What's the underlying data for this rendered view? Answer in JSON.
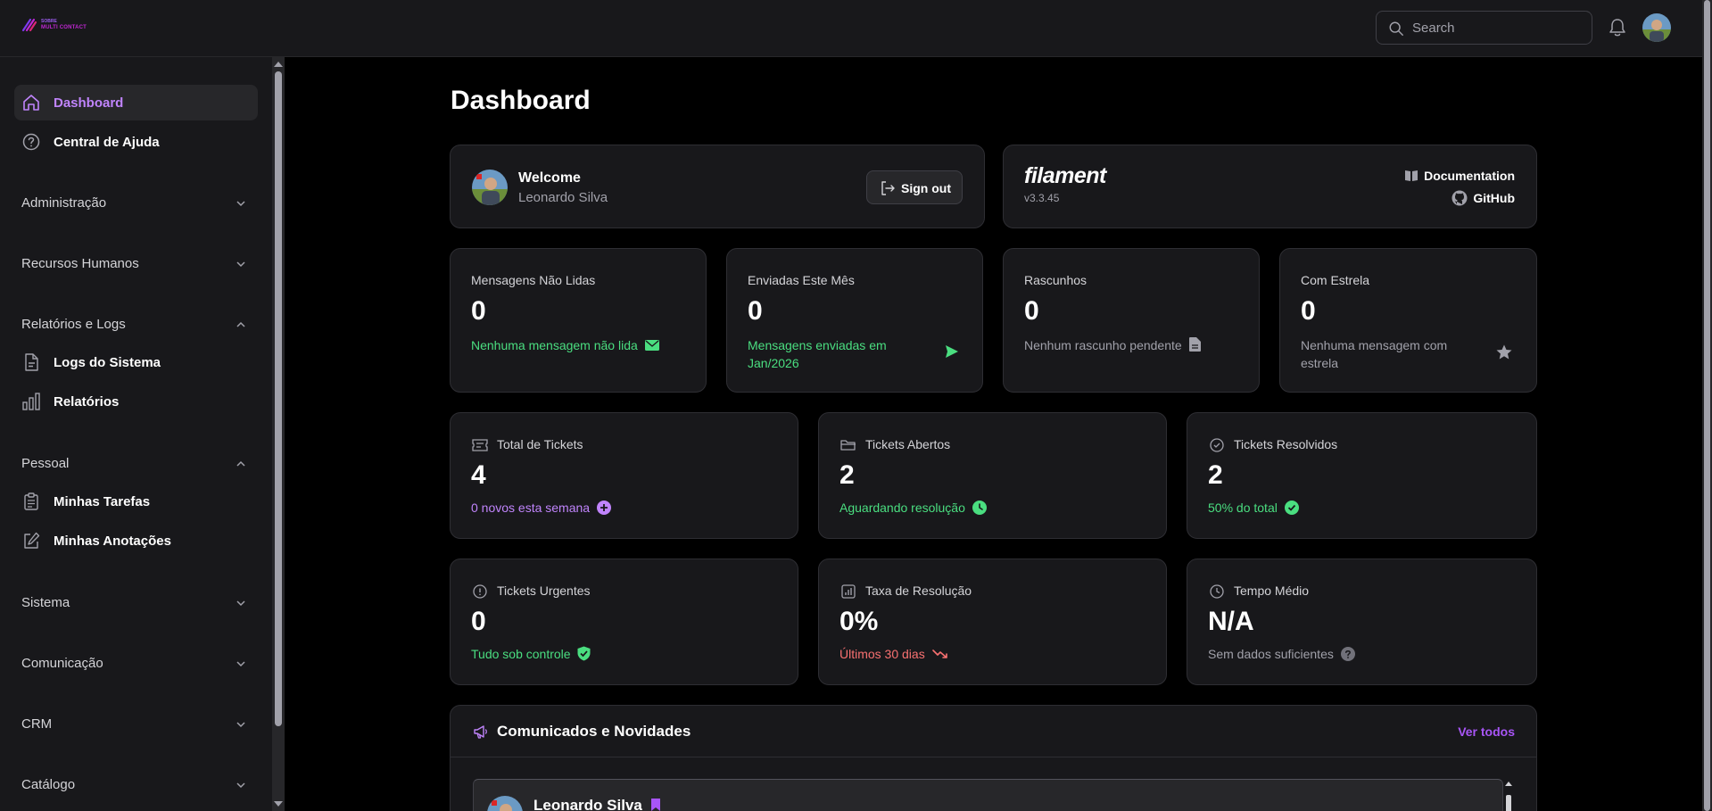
{
  "topbar": {
    "logo_line1": "SOBRE",
    "logo_line2": "MULTI CONTACT",
    "search_placeholder": "Search"
  },
  "sidebar": {
    "items_top": [
      {
        "label": "Dashboard",
        "icon": "home-icon",
        "active": true
      },
      {
        "label": "Central de Ajuda",
        "icon": "help-circle-icon"
      }
    ],
    "groups": [
      {
        "label": "Administração",
        "expanded": false
      },
      {
        "label": "Recursos Humanos",
        "expanded": false
      },
      {
        "label": "Relatórios e Logs",
        "expanded": true,
        "items": [
          {
            "label": "Logs do Sistema",
            "icon": "document-icon"
          },
          {
            "label": "Relatórios",
            "icon": "bar-chart-icon"
          }
        ]
      },
      {
        "label": "Pessoal",
        "expanded": true,
        "items": [
          {
            "label": "Minhas Tarefas",
            "icon": "clipboard-icon"
          },
          {
            "label": "Minhas Anotações",
            "icon": "pencil-square-icon"
          }
        ]
      },
      {
        "label": "Sistema",
        "expanded": false
      },
      {
        "label": "Comunicação",
        "expanded": false
      },
      {
        "label": "CRM",
        "expanded": false
      },
      {
        "label": "Catálogo",
        "expanded": false
      }
    ]
  },
  "main": {
    "title": "Dashboard",
    "welcome": {
      "title": "Welcome",
      "name": "Leonardo Silva",
      "signout_label": "Sign out"
    },
    "filament": {
      "logo": "filament",
      "version": "v3.3.45",
      "doc_label": "Documentation",
      "github_label": "GitHub"
    },
    "stats_row1": [
      {
        "label": "Mensagens Não Lidas",
        "value": "0",
        "desc": "Nenhuma mensagem não lida",
        "desc_color": "#4ade80",
        "icon": "envelope-icon"
      },
      {
        "label": "Enviadas Este Mês",
        "value": "0",
        "desc": "Mensagens enviadas em Jan/2026",
        "desc_color": "#4ade80",
        "icon": "paper-airplane-icon"
      },
      {
        "label": "Rascunhos",
        "value": "0",
        "desc": "Nenhum rascunho pendente",
        "desc_color": "#a1a1aa",
        "icon": "document-text-icon"
      },
      {
        "label": "Com Estrela",
        "value": "0",
        "desc": "Nenhuma mensagem com estrela",
        "desc_color": "#a1a1aa",
        "icon": "star-icon"
      }
    ],
    "stats_row2": [
      {
        "label": "Total de Tickets",
        "value": "4",
        "desc": "0 novos esta semana",
        "desc_color": "#c084fc",
        "icon": "ticket-icon",
        "desc_icon": "plus-circle-icon"
      },
      {
        "label": "Tickets Abertos",
        "value": "2",
        "desc": "Aguardando resolução",
        "desc_color": "#4ade80",
        "icon": "folder-open-icon",
        "desc_icon": "clock-icon"
      },
      {
        "label": "Tickets Resolvidos",
        "value": "2",
        "desc": "50% do total",
        "desc_color": "#4ade80",
        "icon": "check-circle-icon",
        "desc_icon": "check-badge-icon"
      }
    ],
    "stats_row3": [
      {
        "label": "Tickets Urgentes",
        "value": "0",
        "desc": "Tudo sob controle",
        "desc_color": "#4ade80",
        "icon": "exclamation-circle-icon",
        "desc_icon": "shield-check-icon"
      },
      {
        "label": "Taxa de Resolução",
        "value": "0%",
        "desc": "Últimos 30 dias",
        "desc_color": "#f87171",
        "icon": "chart-bar-icon",
        "desc_icon": "trending-down-icon"
      },
      {
        "label": "Tempo Médio",
        "value": "N/A",
        "desc": "Sem dados suficientes",
        "desc_color": "#a1a1aa",
        "icon": "clock-icon",
        "desc_icon": "question-mark-circle-icon"
      }
    ],
    "news": {
      "title": "Comunicados e Novidades",
      "link": "Ver todos",
      "items": [
        {
          "author": "Leonardo Silva"
        }
      ]
    }
  }
}
